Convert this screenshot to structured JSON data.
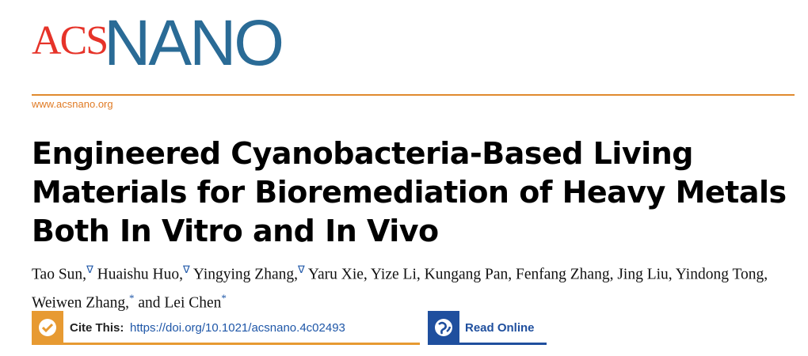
{
  "header": {
    "logo_acs": "ACS",
    "logo_nano": "NANO",
    "url": "www.acsnano.org"
  },
  "article": {
    "title_lines": [
      "Engineered Cyanobacteria-Based Living",
      "Materials for Bioremediation of Heavy Metals",
      "Both In Vitro and In Vivo"
    ],
    "authors": [
      {
        "text": "Tao Sun,",
        "sup": "∇"
      },
      {
        "text": " Huaishu Huo,",
        "sup": "∇"
      },
      {
        "text": " Yingying Zhang,",
        "sup": "∇"
      },
      {
        "text": " Yaru Xie, Yize Li, Kungang Pan, Fenfang Zhang, Jing Liu, Yindong Tong, Weiwen Zhang,",
        "sup": "*"
      },
      {
        "text": " and Lei Chen",
        "sup": "*"
      }
    ]
  },
  "links": {
    "cite_label": "Cite This:",
    "doi": "https://doi.org/10.1021/acsnano.4c02493",
    "read_online": "Read Online"
  }
}
